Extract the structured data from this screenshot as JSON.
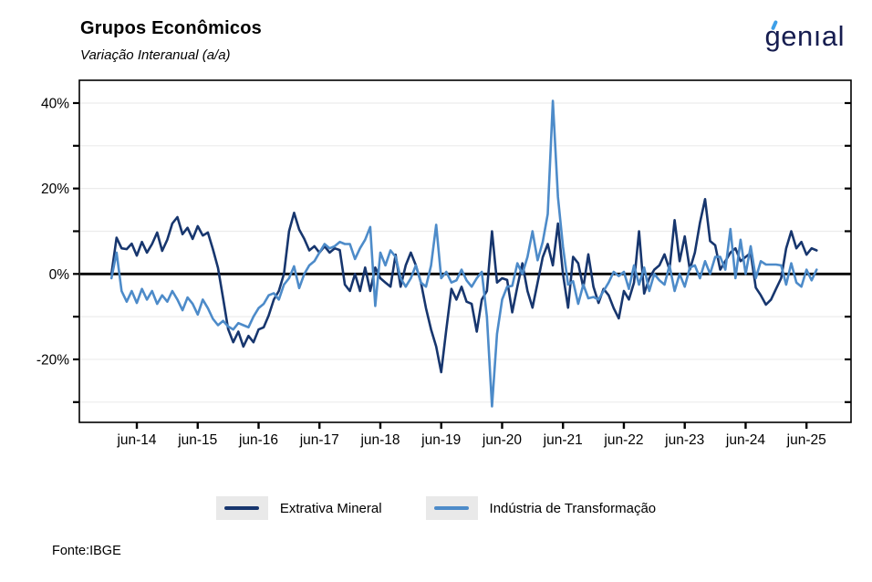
{
  "header": {
    "title": "Grupos Econômicos",
    "subtitle": "Variação Interanual (a/a)",
    "logo_text": "genıal"
  },
  "footer": {
    "source": "Fonte:IBGE"
  },
  "legend": {
    "items": [
      {
        "label": "Extrativa Mineral"
      },
      {
        "label": "Indústria de Transformação"
      }
    ]
  },
  "colors": {
    "navy": "#17366e",
    "blue": "#4d8bc9",
    "zero_line": "#000000",
    "gridline": "#ececec",
    "logo_navy": "#161d50",
    "logo_accent_blue": "#3d9fe8",
    "legend_key_bg": "#e9e9e9"
  },
  "chart_data": {
    "type": "line",
    "title": "Grupos Econômicos",
    "subtitle": "Variação Interanual (a/a)",
    "x_unit": "month",
    "x_start": "jan-14",
    "x_end": "ago-25",
    "n_points": 140,
    "grid": "faint horizontal every 10%",
    "zero_line": true,
    "legend_position": "bottom-center",
    "y_axis": {
      "unit": "%",
      "min": -34.7,
      "max": 45.3,
      "minor_tick_step": 10,
      "labeled_ticks": [
        {
          "value": 40,
          "label": "40%"
        },
        {
          "value": 20,
          "label": "20%"
        },
        {
          "value": 0,
          "label": "0%"
        },
        {
          "value": -20,
          "label": "-20%"
        }
      ]
    },
    "x_ticks": {
      "labels": [
        "jun-14",
        "jun-15",
        "jun-16",
        "jun-17",
        "jun-18",
        "jun-19",
        "jun-20",
        "jun-21",
        "jun-22",
        "jun-23",
        "jun-24",
        "jun-25"
      ],
      "month_indices": [
        5,
        17,
        29,
        41,
        53,
        65,
        77,
        89,
        101,
        113,
        125,
        137
      ]
    },
    "series": [
      {
        "id": "extrativa-mineral",
        "name": "Extrativa Mineral",
        "color": "#17366e",
        "values": [
          0,
          8.5,
          6,
          5.8,
          7.1,
          4.3,
          7.5,
          5,
          7,
          9.7,
          5.4,
          8,
          11.8,
          13.3,
          9.3,
          10.8,
          8.2,
          11.2,
          9,
          9.7,
          5.8,
          1.4,
          -5.7,
          -12.9,
          -16,
          -13.5,
          -17,
          -14.5,
          -16,
          -13,
          -12.5,
          -9.7,
          -6,
          -4,
          0,
          10,
          14.3,
          10.4,
          8.2,
          5.5,
          6.5,
          5,
          6.5,
          5,
          6,
          5.6,
          -2.5,
          -4,
          0,
          -4,
          1.5,
          -4,
          1.5,
          -1,
          -2,
          -3,
          4.5,
          -3,
          2,
          5,
          2,
          -2,
          -8,
          -13,
          -17,
          -23,
          -13,
          -3.5,
          -6,
          -3,
          -6.5,
          -7,
          -13.5,
          -6,
          -4,
          10,
          -2,
          -1,
          -1.4,
          -9,
          -3,
          2.5,
          -4,
          -7.9,
          -2,
          3.9,
          7,
          2,
          11.8,
          0,
          -7.9,
          4,
          2.5,
          -3.2,
          4.6,
          -3,
          -6.8,
          -3.5,
          -5,
          -8,
          -10.4,
          -4,
          -6,
          -2,
          10,
          -4.6,
          -1,
          1,
          2,
          4.6,
          1,
          12.6,
          3,
          8.8,
          1,
          5,
          12,
          17.5,
          7.7,
          6.7,
          1,
          3,
          5,
          6,
          3,
          4,
          4.9,
          -3.2,
          -5,
          -7.2,
          -6,
          -3.5,
          -1,
          6,
          10,
          6,
          7.5,
          4.5,
          6,
          5.5
        ]
      },
      {
        "id": "industria-de-transformacao",
        "name": "Indústria de Transformação",
        "color": "#4d8bc9",
        "values": [
          -1,
          5,
          -4,
          -6.5,
          -4,
          -6.8,
          -3.5,
          -6,
          -4,
          -7,
          -5,
          -6.5,
          -4,
          -6,
          -8.5,
          -5.5,
          -7,
          -9.5,
          -6,
          -8,
          -10.5,
          -12,
          -11,
          -12.3,
          -13,
          -11.5,
          -12,
          -12.5,
          -10,
          -8,
          -7,
          -5,
          -4.5,
          -6,
          -2.5,
          -1,
          1.8,
          -3.3,
          0,
          2,
          3,
          5,
          7,
          6,
          6.5,
          7.5,
          7,
          7,
          3.5,
          6,
          8,
          11,
          -7.5,
          5,
          2,
          5.5,
          4,
          -1,
          -3,
          -1,
          2,
          -2,
          -3,
          2,
          11.5,
          -1,
          0.5,
          -2,
          -1.5,
          1,
          -1.5,
          -3,
          -1,
          0.5,
          -10,
          -31,
          -14,
          -6,
          -3,
          -2.8,
          2.5,
          0,
          4,
          10,
          3.2,
          7.5,
          14,
          40.5,
          18,
          6.4,
          -2.5,
          -1.7,
          -7,
          -2.5,
          -5.7,
          -5.4,
          -6,
          -4,
          -2,
          0.5,
          -0.5,
          0.5,
          -3.5,
          2,
          -2.5,
          1.5,
          -4,
          0,
          -1.5,
          -2.5,
          2,
          -4,
          0,
          -3,
          1.5,
          2,
          -1,
          3,
          0,
          4,
          4,
          1,
          10.5,
          -1,
          8,
          0,
          6.5,
          -1,
          3,
          2.2,
          2.2,
          2.2,
          2,
          -2.5,
          2.5,
          -2,
          -3,
          1,
          -1.5,
          1
        ]
      }
    ]
  }
}
